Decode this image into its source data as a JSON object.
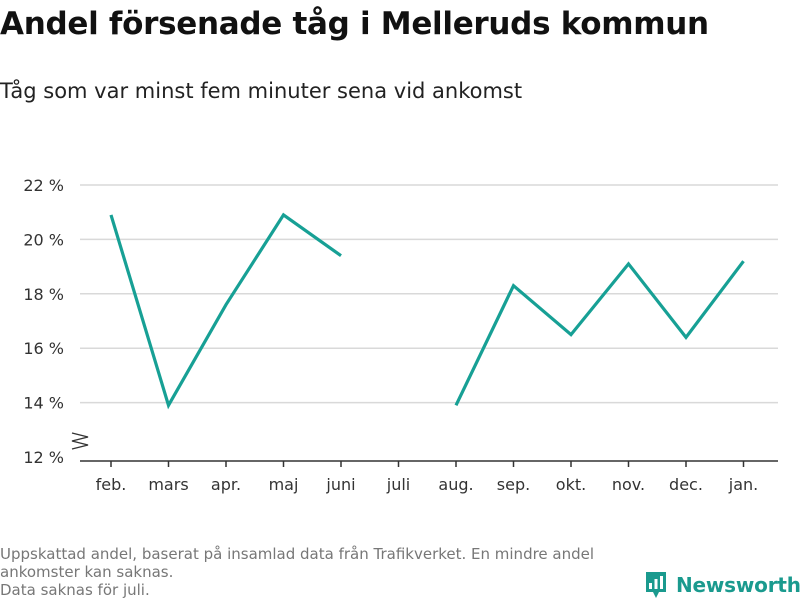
{
  "header": {
    "title": "Andel försenade tåg i Melleruds kommun",
    "subtitle": "Tåg som var minst fem minuter sena vid ankomst"
  },
  "footer": {
    "note_1": "Uppskattad andel, baserat på insamlad data från Trafikverket. En mindre andel ankomster kan saknas.",
    "note_2": "Data saknas för juli.",
    "brand": "Newsworthy",
    "brand_icon": "newsworthy-logo-icon"
  },
  "colors": {
    "line": "#17a095",
    "grid": "#d9d9d9",
    "axis": "#333333",
    "brand": "#1a9a8e"
  },
  "chart_data": {
    "type": "line",
    "title": "Andel försenade tåg i Melleruds kommun",
    "subtitle": "Tåg som var minst fem minuter sena vid ankomst",
    "xlabel": "",
    "ylabel": "",
    "categories": [
      "feb.",
      "mars",
      "apr.",
      "maj",
      "juni",
      "juli",
      "aug.",
      "sep.",
      "okt.",
      "nov.",
      "dec.",
      "jan."
    ],
    "series": [
      {
        "values": [
          20.9,
          13.9,
          17.6,
          20.9,
          19.4,
          null,
          13.9,
          18.3,
          16.5,
          19.1,
          16.4,
          19.2
        ]
      }
    ],
    "ylim": [
      12,
      22
    ],
    "yticks": [
      12,
      14,
      16,
      18,
      20,
      22
    ],
    "ytick_labels": [
      "12 %",
      "14 %",
      "16 %",
      "18 %",
      "20 %",
      "22 %"
    ],
    "axis_break": true,
    "grid": "horizontal",
    "legend": "none"
  }
}
